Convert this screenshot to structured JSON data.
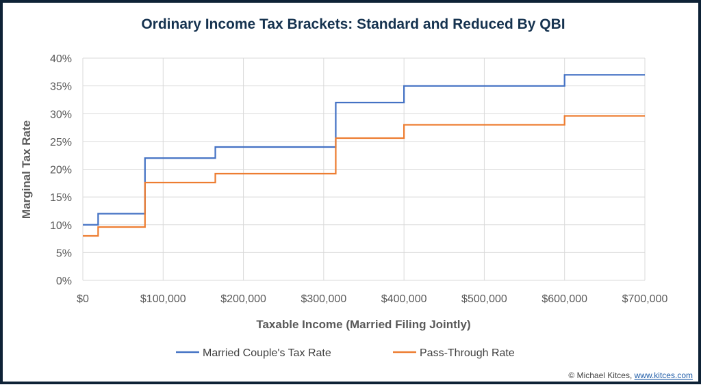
{
  "chart_data": {
    "type": "line",
    "step": true,
    "title": "Ordinary Income Tax Brackets: Standard and Reduced By QBI",
    "xlabel": "Taxable Income (Married Filing Jointly)",
    "ylabel": "Marginal Tax Rate",
    "xlim": [
      0,
      700000
    ],
    "ylim": [
      0,
      0.4
    ],
    "x_ticks": [
      0,
      100000,
      200000,
      300000,
      400000,
      500000,
      600000,
      700000
    ],
    "x_tick_labels": [
      "$0",
      "$100,000",
      "$200,000",
      "$300,000",
      "$400,000",
      "$500,000",
      "$600,000",
      "$700,000"
    ],
    "y_ticks": [
      0,
      0.05,
      0.1,
      0.15,
      0.2,
      0.25,
      0.3,
      0.35,
      0.4
    ],
    "y_tick_labels": [
      "0%",
      "5%",
      "10%",
      "15%",
      "20%",
      "25%",
      "30%",
      "35%",
      "40%"
    ],
    "grid": true,
    "legend_position": "bottom",
    "series": [
      {
        "name": "Married Couple's Tax Rate",
        "color": "#4472c4",
        "x": [
          0,
          19050,
          77400,
          165000,
          315000,
          400000,
          600000,
          700000
        ],
        "y": [
          0.1,
          0.12,
          0.22,
          0.24,
          0.32,
          0.35,
          0.37,
          0.37
        ]
      },
      {
        "name": "Pass-Through Rate",
        "color": "#ed7d31",
        "x": [
          0,
          19050,
          77400,
          165000,
          315000,
          400000,
          600000,
          700000
        ],
        "y": [
          0.08,
          0.096,
          0.176,
          0.192,
          0.256,
          0.28,
          0.296,
          0.296
        ]
      }
    ]
  },
  "credit": {
    "text": "© Michael Kitces, ",
    "link": "www.kitces.com"
  }
}
